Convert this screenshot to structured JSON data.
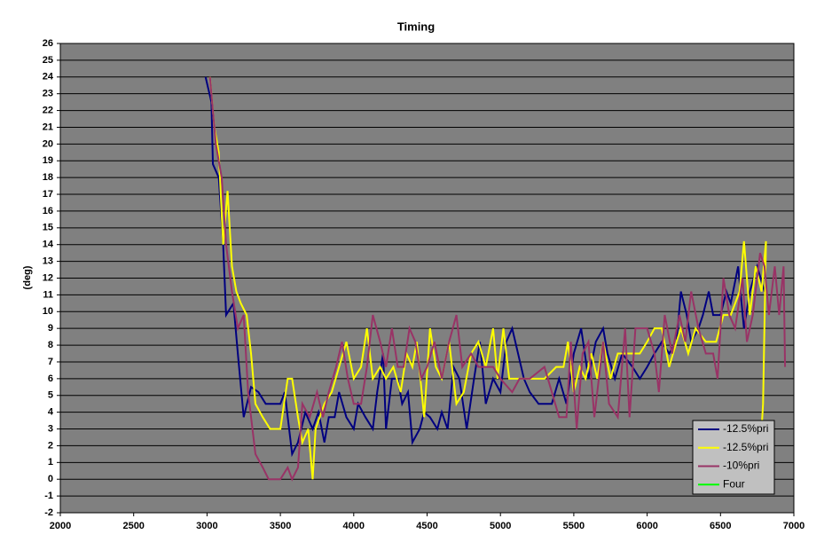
{
  "chart_data": {
    "type": "line",
    "title": "Timing",
    "y_label": "(deg)",
    "xlim": [
      2000,
      7000
    ],
    "xticks": [
      2000,
      2500,
      3000,
      3500,
      4000,
      4500,
      5000,
      5500,
      6000,
      6500,
      7000
    ],
    "ylim": [
      -2,
      26
    ],
    "yticks": [
      -2,
      -1,
      0,
      1,
      2,
      3,
      4,
      5,
      6,
      7,
      8,
      9,
      10,
      11,
      12,
      13,
      14,
      15,
      16,
      17,
      18,
      19,
      20,
      21,
      22,
      23,
      24,
      25,
      26
    ],
    "grid": true,
    "legend": "lower right",
    "series": [
      {
        "name": "-12.5%pri",
        "color": "#000080",
        "x": [
          2990,
          3030,
          3040,
          3080,
          3110,
          3130,
          3180,
          3210,
          3250,
          3300,
          3350,
          3400,
          3500,
          3530,
          3580,
          3620,
          3670,
          3720,
          3760,
          3800,
          3830,
          3870,
          3900,
          3950,
          4000,
          4030,
          4080,
          4130,
          4160,
          4200,
          4220,
          4260,
          4300,
          4330,
          4370,
          4400,
          4450,
          4480,
          4520,
          4570,
          4600,
          4640,
          4680,
          4720,
          4770,
          4820,
          4860,
          4900,
          4950,
          5000,
          5040,
          5080,
          5120,
          5160,
          5200,
          5260,
          5350,
          5400,
          5450,
          5500,
          5550,
          5600,
          5650,
          5700,
          5730,
          5780,
          5830,
          5900,
          5950,
          6000,
          6050,
          6100,
          6150,
          6200,
          6230,
          6270,
          6300,
          6350,
          6380,
          6420,
          6450,
          6500,
          6540,
          6570,
          6620,
          6660,
          6700,
          6750,
          6800
        ],
        "values": [
          24,
          22.5,
          18.8,
          18,
          14,
          9.8,
          10.5,
          7.5,
          3.7,
          5.5,
          5.2,
          4.5,
          4.5,
          5.2,
          1.5,
          2.2,
          4,
          3,
          4,
          2.2,
          3.7,
          3.7,
          5.2,
          3.7,
          3,
          4.5,
          3.7,
          3,
          5.2,
          7.5,
          3,
          6,
          6,
          4.5,
          5.2,
          2.2,
          3,
          4,
          3.7,
          3,
          4,
          3,
          6.7,
          6,
          3,
          6,
          8.2,
          4.5,
          6,
          5.2,
          8.2,
          9,
          7.5,
          6,
          5.2,
          4.5,
          4.5,
          6,
          4.5,
          7.5,
          9,
          6,
          8.2,
          9,
          7.5,
          6,
          7.5,
          6.7,
          6,
          6.7,
          7.5,
          8.2,
          7.5,
          8.2,
          11.2,
          9.8,
          8.2,
          9,
          9.8,
          11.2,
          9.8,
          9.8,
          11.2,
          10.5,
          12.7,
          9,
          11.2,
          12.7,
          11.2
        ]
      },
      {
        "name": "-12.5%pri",
        "color": "#ffff00",
        "x": [
          3020,
          3050,
          3080,
          3110,
          3140,
          3170,
          3200,
          3230,
          3270,
          3300,
          3330,
          3380,
          3430,
          3500,
          3550,
          3580,
          3620,
          3650,
          3690,
          3720,
          3740,
          3800,
          3850,
          3900,
          3950,
          4000,
          4050,
          4090,
          4130,
          4180,
          4220,
          4270,
          4320,
          4360,
          4400,
          4430,
          4480,
          4520,
          4560,
          4600,
          4650,
          4700,
          4750,
          4800,
          4850,
          4900,
          4950,
          4980,
          5020,
          5060,
          5120,
          5200,
          5300,
          5380,
          5430,
          5460,
          5500,
          5540,
          5580,
          5620,
          5660,
          5700,
          5750,
          5800,
          5850,
          5950,
          6000,
          6050,
          6100,
          6150,
          6200,
          6230,
          6280,
          6330,
          6400,
          6470,
          6520,
          6570,
          6630,
          6660,
          6700,
          6740,
          6780,
          6810,
          6790,
          6780
        ],
        "values": [
          24,
          21,
          19.5,
          14,
          17.2,
          12.7,
          11.2,
          10.5,
          9.8,
          7.5,
          4.5,
          3.7,
          3,
          3,
          6,
          6,
          3.7,
          2.2,
          3,
          0,
          3,
          4.5,
          5.2,
          6.7,
          8.2,
          6,
          6.7,
          9,
          6,
          6.7,
          6,
          6.7,
          5.2,
          7.5,
          6.7,
          8.2,
          3.7,
          9,
          6.7,
          6,
          8.2,
          4.5,
          5.2,
          7.5,
          8.2,
          6.7,
          9,
          6,
          9,
          6,
          6,
          6,
          6,
          6.7,
          6.7,
          8.2,
          5.2,
          6.7,
          6,
          7.5,
          6,
          8.2,
          6,
          7.5,
          7.5,
          7.5,
          8.2,
          9,
          9,
          6.7,
          8.2,
          9,
          7.5,
          9,
          8.2,
          8.2,
          9.8,
          9.8,
          11.2,
          14.2,
          9.8,
          12.7,
          11.2,
          14.2,
          4.5,
          3
        ]
      },
      {
        "name": "-10%pri",
        "color": "#993366",
        "x": [
          3020,
          3060,
          3100,
          3130,
          3170,
          3210,
          3250,
          3280,
          3330,
          3380,
          3420,
          3500,
          3550,
          3580,
          3620,
          3650,
          3700,
          3750,
          3790,
          3830,
          3880,
          3920,
          3960,
          4000,
          4050,
          4090,
          4130,
          4180,
          4220,
          4260,
          4300,
          4340,
          4380,
          4420,
          4460,
          4500,
          4550,
          4600,
          4650,
          4700,
          4740,
          4800,
          4850,
          4900,
          4950,
          5000,
          5080,
          5130,
          5200,
          5300,
          5400,
          5450,
          5480,
          5520,
          5560,
          5600,
          5640,
          5700,
          5740,
          5800,
          5850,
          5880,
          5920,
          6000,
          6050,
          6080,
          6120,
          6170,
          6220,
          6260,
          6300,
          6350,
          6400,
          6450,
          6480,
          6520,
          6560,
          6600,
          6650,
          6680,
          6720,
          6770,
          6800,
          6830,
          6870,
          6900,
          6930,
          6940
        ],
        "values": [
          24,
          20,
          18,
          14,
          11.2,
          9,
          9.8,
          5.2,
          1.5,
          0.7,
          0,
          0,
          0.7,
          0,
          0.7,
          4.5,
          3.7,
          5.2,
          3.7,
          5.2,
          6.7,
          8.2,
          6,
          4.5,
          4.5,
          6.7,
          9.8,
          8.2,
          6.7,
          9,
          6.7,
          6.7,
          9,
          8.2,
          6,
          6.7,
          8.2,
          6,
          8.2,
          9.8,
          6.7,
          7.5,
          6.7,
          6.7,
          6.7,
          6,
          5.2,
          6,
          6,
          6.7,
          3.7,
          3.7,
          8.2,
          3,
          7.5,
          8.2,
          3.7,
          8.2,
          4.5,
          3.7,
          9,
          3.7,
          9,
          9,
          7.5,
          5.2,
          9.8,
          7.5,
          9.8,
          8.2,
          11.2,
          9,
          7.5,
          7.5,
          6,
          12,
          9.8,
          9,
          12,
          8.2,
          9.8,
          13.5,
          12.7,
          9.8,
          12.7,
          9.8,
          12.7,
          6.7
        ]
      },
      {
        "name": "Four",
        "color": "#00ff00",
        "x": [],
        "values": []
      }
    ]
  }
}
